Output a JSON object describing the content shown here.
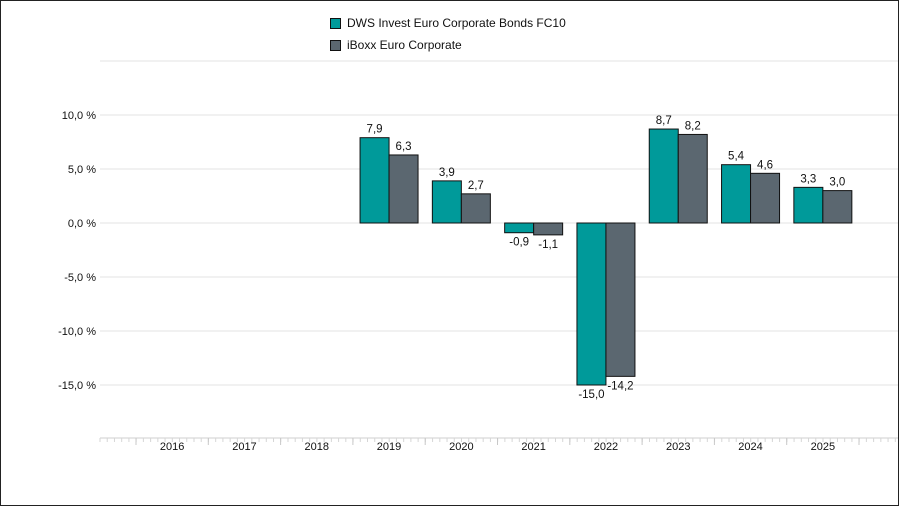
{
  "chart_data": {
    "type": "bar",
    "categories": [
      "2016",
      "2017",
      "2018",
      "2019",
      "2020",
      "2021",
      "2022",
      "2023",
      "2024",
      "2025"
    ],
    "series": [
      {
        "name": "DWS Invest Euro Corporate Bonds FC10",
        "color": "#009a9a",
        "values": [
          null,
          null,
          null,
          7.9,
          3.9,
          -0.9,
          -15.0,
          8.7,
          5.4,
          3.3
        ],
        "labels": [
          "",
          "",
          "",
          "7,9",
          "3,9",
          "-0,9",
          "-15,0",
          "8,7",
          "5,4",
          "3,3"
        ]
      },
      {
        "name": "iBoxx Euro Corporate",
        "color": "#5b6770",
        "values": [
          null,
          null,
          null,
          6.3,
          2.7,
          -1.1,
          -14.2,
          8.2,
          4.6,
          3.0
        ],
        "labels": [
          "",
          "",
          "",
          "6,3",
          "2,7",
          "-1,1",
          "-14,2",
          "8,2",
          "4,6",
          "3,0"
        ]
      }
    ],
    "y_ticks": [
      10,
      5,
      0,
      -5,
      -10,
      -15
    ],
    "y_tick_labels": [
      "10,0 %",
      "5,0 %",
      "0,0 %",
      "-5,0 %",
      "-10,0 %",
      "-15,0 %"
    ],
    "ylim": [
      -20,
      15
    ],
    "legend_position": "top-center",
    "grid": true
  }
}
